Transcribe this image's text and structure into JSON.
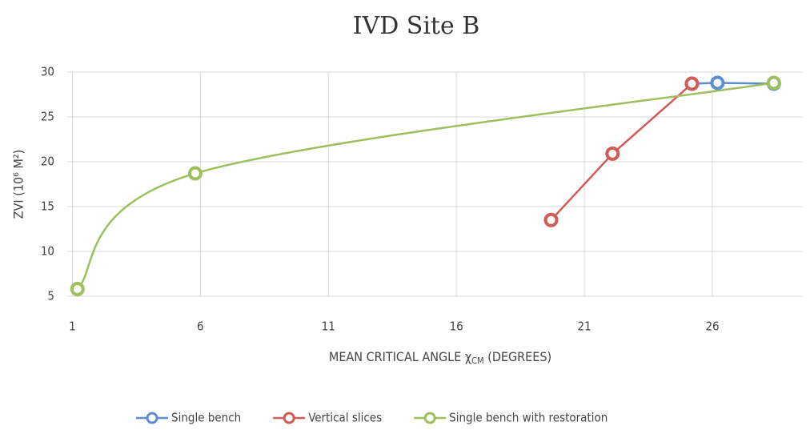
{
  "chart_data": {
    "type": "line",
    "title": "IVD Site B",
    "x_label": [
      "MEAN CRITICAL  ANGLE χ",
      "CM",
      " (DEGREES)"
    ],
    "y_label": "ZVI (10⁶ M²)",
    "xlim": [
      0.8,
      29.5
    ],
    "xticks": [
      1,
      6,
      11,
      16,
      21,
      26
    ],
    "ylim": [
      5,
      30
    ],
    "yticks": [
      5,
      10,
      15,
      20,
      25,
      30
    ],
    "grid": true,
    "legend": "bottom",
    "series": [
      {
        "name": "Single bench",
        "color": "#5b8fd1",
        "smooth": false,
        "x": [
          25.2,
          26.2,
          28.4
        ],
        "values": [
          28.7,
          28.8,
          28.7
        ]
      },
      {
        "name": "Vertical slices",
        "color": "#cf5c57",
        "smooth": false,
        "x": [
          19.7,
          22.1,
          25.2
        ],
        "values": [
          13.5,
          20.9,
          28.7
        ]
      },
      {
        "name": "Single bench with restoration",
        "color": "#9dbf5d",
        "smooth": true,
        "x": [
          1.2,
          5.8,
          28.4
        ],
        "values": [
          5.8,
          18.7,
          28.8
        ]
      }
    ]
  }
}
